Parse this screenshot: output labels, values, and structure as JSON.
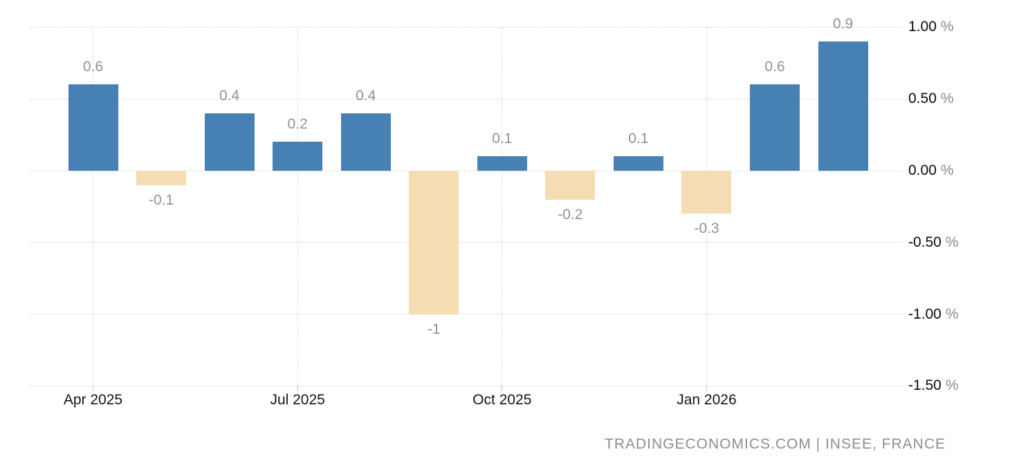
{
  "chart_data": {
    "type": "bar",
    "values": [
      0.6,
      -0.1,
      0.4,
      0.2,
      0.4,
      -1,
      0.1,
      -0.2,
      0.1,
      -0.3,
      0.6,
      0.9
    ],
    "bar_labels": [
      "0.6",
      "-0.1",
      "0.4",
      "0.2",
      "0.4",
      "-1",
      "0.1",
      "-0.2",
      "0.1",
      "-0.3",
      "0.6",
      "0.9"
    ],
    "x_ticks": [
      {
        "index": 0,
        "label": "Apr 2025"
      },
      {
        "index": 3,
        "label": "Jul 2025"
      },
      {
        "index": 6,
        "label": "Oct 2025"
      },
      {
        "index": 9,
        "label": "Jan 2026"
      }
    ],
    "y_ticks": [
      {
        "value": 1.0,
        "label": "1.00",
        "unit": "%"
      },
      {
        "value": 0.5,
        "label": "0.50",
        "unit": "%"
      },
      {
        "value": 0.0,
        "label": "0.00",
        "unit": "%"
      },
      {
        "value": -0.5,
        "label": "-0.50",
        "unit": "%"
      },
      {
        "value": -1.0,
        "label": "-1.00",
        "unit": "%"
      },
      {
        "value": -1.5,
        "label": "-1.50",
        "unit": "%"
      }
    ],
    "ylim": [
      -1.5,
      1.0
    ],
    "grid": true,
    "legend": false,
    "title": "",
    "xlabel": "",
    "ylabel": "",
    "colors": {
      "bar_positive": "#4781B3",
      "bar_negative": "#F4DDB2",
      "grid": "#CFCFCF",
      "value_label": "#8E9297",
      "axis_text": "#141414",
      "unit_suffix": "#8A8A8A"
    }
  },
  "attribution": {
    "text": "TRADINGECONOMICS.COM | INSEE, FRANCE"
  }
}
